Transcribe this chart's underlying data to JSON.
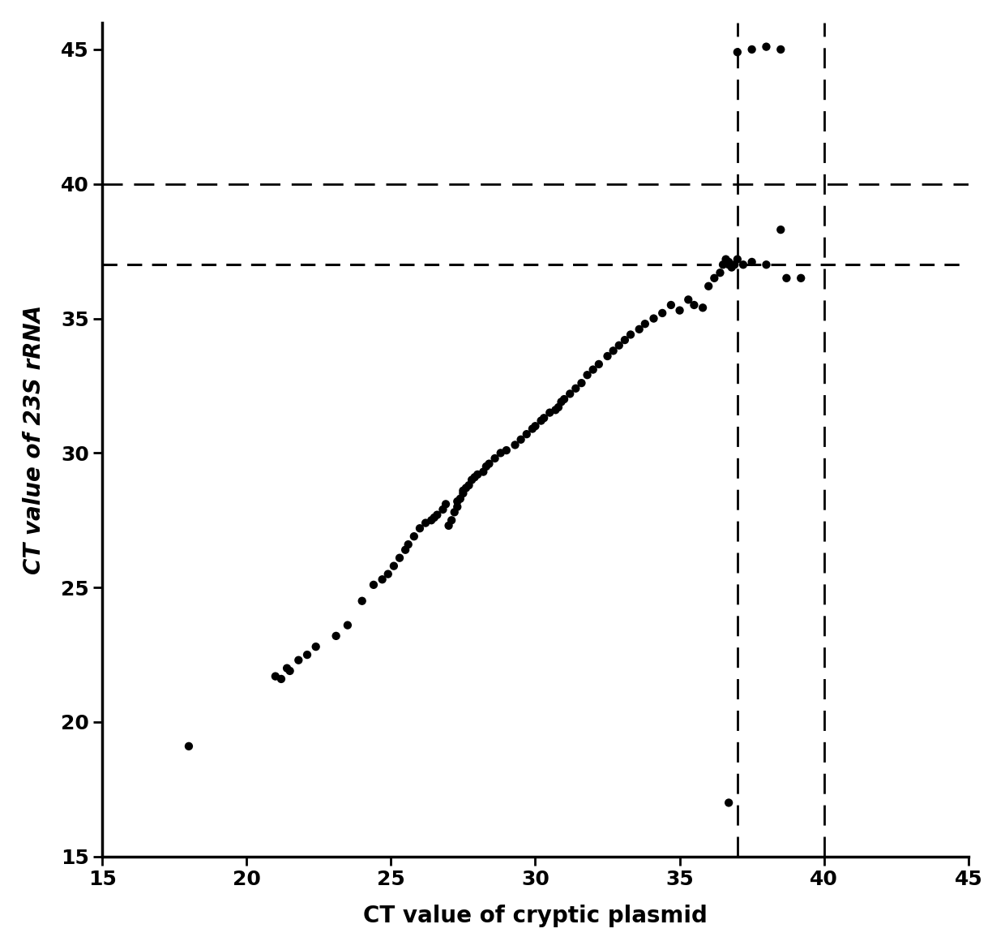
{
  "x_data": [
    18.0,
    21.0,
    21.2,
    21.4,
    21.5,
    21.8,
    22.1,
    22.4,
    23.1,
    23.5,
    24.0,
    24.4,
    24.7,
    24.9,
    25.1,
    25.3,
    25.5,
    25.6,
    25.8,
    26.0,
    26.2,
    26.4,
    26.5,
    26.6,
    26.8,
    26.9,
    27.0,
    27.1,
    27.2,
    27.3,
    27.3,
    27.4,
    27.5,
    27.5,
    27.6,
    27.7,
    27.8,
    27.9,
    28.0,
    28.2,
    28.3,
    28.4,
    28.6,
    28.8,
    29.0,
    29.3,
    29.5,
    29.7,
    29.9,
    30.0,
    30.2,
    30.3,
    30.5,
    30.7,
    30.8,
    30.9,
    31.0,
    31.2,
    31.4,
    31.6,
    31.8,
    32.0,
    32.2,
    32.5,
    32.7,
    32.9,
    33.1,
    33.3,
    33.6,
    33.8,
    34.1,
    34.4,
    34.7,
    35.0,
    35.3,
    35.5,
    35.8,
    36.0,
    36.2,
    36.4,
    36.5,
    36.6,
    36.7,
    36.7,
    36.8,
    36.9,
    37.0,
    37.2,
    36.7,
    37.5,
    38.0,
    38.5,
    38.7,
    39.2,
    37.0,
    37.5,
    38.0,
    38.5
  ],
  "y_data": [
    19.1,
    21.7,
    21.6,
    22.0,
    21.9,
    22.3,
    22.5,
    22.8,
    23.2,
    23.6,
    24.5,
    25.1,
    25.3,
    25.5,
    25.8,
    26.1,
    26.4,
    26.6,
    26.9,
    27.2,
    27.4,
    27.5,
    27.6,
    27.7,
    27.9,
    28.1,
    27.3,
    27.5,
    27.8,
    28.0,
    28.2,
    28.3,
    28.5,
    28.6,
    28.7,
    28.8,
    29.0,
    29.1,
    29.2,
    29.3,
    29.5,
    29.6,
    29.8,
    30.0,
    30.1,
    30.3,
    30.5,
    30.7,
    30.9,
    31.0,
    31.2,
    31.3,
    31.5,
    31.6,
    31.7,
    31.9,
    32.0,
    32.2,
    32.4,
    32.6,
    32.9,
    33.1,
    33.3,
    33.6,
    33.8,
    34.0,
    34.2,
    34.4,
    34.6,
    34.8,
    35.0,
    35.2,
    35.5,
    35.3,
    35.7,
    35.5,
    35.4,
    36.2,
    36.5,
    36.7,
    37.0,
    37.2,
    37.1,
    37.0,
    36.9,
    37.0,
    37.2,
    37.0,
    17.0,
    37.1,
    37.0,
    38.3,
    36.5,
    36.5,
    44.9,
    45.0,
    45.1,
    45.0
  ],
  "hline_y1": 40.0,
  "hline_y2": 37.0,
  "vline_x1": 37.0,
  "vline_x2": 40.0,
  "xlim": [
    15,
    45
  ],
  "ylim": [
    15,
    46
  ],
  "xticks": [
    15,
    20,
    25,
    30,
    35,
    40,
    45
  ],
  "yticks": [
    15,
    20,
    25,
    30,
    35,
    40,
    45
  ],
  "xlabel": "CT value of cryptic plasmid",
  "ylabel": "CT value of 23S rRNA",
  "dot_color": "#000000",
  "dot_size": 55,
  "line_color": "#000000",
  "background_color": "#ffffff",
  "xlabel_fontsize": 20,
  "ylabel_fontsize": 20,
  "tick_fontsize": 18
}
